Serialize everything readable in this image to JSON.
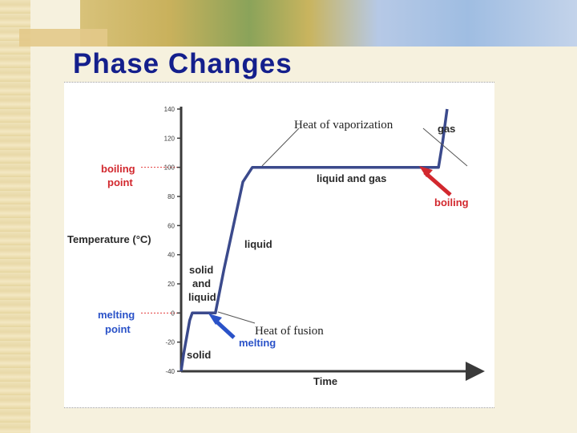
{
  "slide": {
    "title": "Phase Changes"
  },
  "colors": {
    "title": "#141f8c",
    "axis": "#3a3a3a",
    "curve": "#3b4a8c",
    "boiling": "#d2282e",
    "melting": "#2a52c8",
    "gridline": "#e23b3b"
  },
  "chart_data": {
    "type": "line",
    "title": "",
    "xlabel": "Time",
    "ylabel": "Temperature (°C)",
    "ylim": [
      -40,
      140
    ],
    "y_ticks": [
      "140",
      "120",
      "100",
      "80",
      "60",
      "40",
      "20",
      "0",
      "-20",
      "-40"
    ],
    "series": [
      {
        "values_xy": [
          [
            0,
            -40
          ],
          [
            0.3,
            -28
          ],
          [
            1.0,
            -5
          ],
          [
            1.3,
            0
          ],
          [
            4.0,
            0
          ],
          [
            5.0,
            30
          ],
          [
            7.2,
            90
          ],
          [
            8.3,
            100
          ],
          [
            30.0,
            100
          ],
          [
            30.5,
            118
          ],
          [
            31.0,
            140
          ]
        ]
      }
    ],
    "xlim": [
      0,
      34
    ],
    "reference_lines": [
      {
        "label": "boiling point",
        "y": 100
      },
      {
        "label": "melting point",
        "y": 0
      }
    ],
    "region_labels": {
      "solid": "solid",
      "solid_liquid": [
        "solid",
        "and",
        "liquid"
      ],
      "liquid": "liquid",
      "liquid_gas": "liquid and gas",
      "gas": "gas"
    },
    "annotations": {
      "boiling_point": [
        "boiling",
        "point"
      ],
      "melting_point": [
        "melting",
        "point"
      ],
      "boiling": "boiling",
      "melting": "melting",
      "heat_of_vaporization": "Heat of vaporization",
      "heat_of_fusion": "Heat of fusion"
    }
  }
}
